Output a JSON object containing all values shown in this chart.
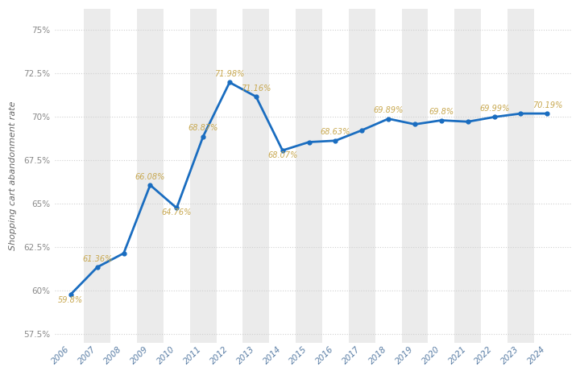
{
  "years": [
    2006,
    2007,
    2008,
    2009,
    2010,
    2011,
    2012,
    2013,
    2014,
    2015,
    2016,
    2017,
    2018,
    2019,
    2020,
    2021,
    2022,
    2023,
    2024
  ],
  "values": [
    59.8,
    61.36,
    62.16,
    66.08,
    64.76,
    68.87,
    71.98,
    71.16,
    68.07,
    68.55,
    68.63,
    69.23,
    69.89,
    69.57,
    69.8,
    69.72,
    69.99,
    70.19,
    70.19
  ],
  "labels": [
    "59.8%",
    "61.36%",
    "",
    "66.08%",
    "64.76%",
    "68.87%",
    "71.98%",
    "71.16%",
    "68.07%",
    "",
    "68.63%",
    "",
    "69.89%",
    "",
    "69.8%",
    "",
    "69.99%",
    "",
    "70.19%"
  ],
  "label_offsets_x": [
    0,
    0,
    0,
    0,
    0,
    0,
    0,
    0,
    0,
    0,
    0,
    0,
    0,
    0,
    0,
    0,
    0,
    0,
    0
  ],
  "label_offsets_y": [
    -0.55,
    0.25,
    0,
    0.25,
    -0.5,
    0.25,
    0.25,
    0.25,
    -0.5,
    0,
    0.25,
    0,
    0.25,
    0,
    0.25,
    0,
    0.25,
    0,
    0.25
  ],
  "line_color": "#1a6dc0",
  "marker_color": "#1a6dc0",
  "label_color": "#c8a850",
  "bg_color": "#ffffff",
  "band_color": "#ebebeb",
  "grid_color": "#d0d0d0",
  "ylabel": "Shopping cart abandonment rate",
  "yticks": [
    57.5,
    60.0,
    62.5,
    65.0,
    67.5,
    70.0,
    72.5,
    75.0
  ],
  "ytick_labels": [
    "57.5%",
    "60%",
    "62.5%",
    "65%",
    "67.5%",
    "70%",
    "72.5%",
    "75%"
  ],
  "ylim": [
    57.0,
    76.2
  ],
  "xlim": [
    2005.4,
    2024.9
  ]
}
